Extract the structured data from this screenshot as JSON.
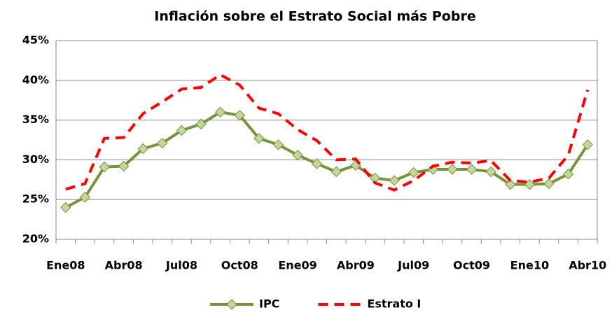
{
  "chart_data": {
    "type": "line",
    "title": "Inflación sobre el  Estrato Social más Pobre",
    "categories": [
      "Ene08",
      null,
      null,
      "Abr08",
      null,
      null,
      "Jul08",
      null,
      null,
      "Oct08",
      null,
      null,
      "Ene09",
      null,
      null,
      "Abr09",
      null,
      null,
      "Jul09",
      null,
      null,
      "Oct09",
      null,
      null,
      "Ene10",
      null,
      null,
      "Abr10"
    ],
    "series": [
      {
        "name": "IPC",
        "color": "#77933c",
        "marker_fill": "#c3d69b",
        "dashed": false,
        "values": [
          24.0,
          25.3,
          29.1,
          29.2,
          31.4,
          32.1,
          33.7,
          34.5,
          36.0,
          35.6,
          32.7,
          31.9,
          30.6,
          29.5,
          28.5,
          29.3,
          27.7,
          27.4,
          28.4,
          28.8,
          28.8,
          28.8,
          28.5,
          26.9,
          26.9,
          27.0,
          28.2,
          31.9
        ]
      },
      {
        "name": "Estrato I",
        "color": "#ff0000",
        "dashed": true,
        "values": [
          26.3,
          27.0,
          32.7,
          32.8,
          35.8,
          37.3,
          38.9,
          39.1,
          40.7,
          39.4,
          36.5,
          35.8,
          33.8,
          32.4,
          30.0,
          30.1,
          27.1,
          26.2,
          27.4,
          29.2,
          29.7,
          29.6,
          29.9,
          27.4,
          27.2,
          27.7,
          30.6,
          38.8
        ]
      }
    ],
    "ylim": [
      20,
      45
    ],
    "yticks": [
      {
        "value": 20,
        "label": "20%"
      },
      {
        "value": 25,
        "label": "25%"
      },
      {
        "value": 30,
        "label": "30%"
      },
      {
        "value": 35,
        "label": "35%"
      },
      {
        "value": 40,
        "label": "40%"
      },
      {
        "value": 45,
        "label": "45%"
      }
    ],
    "grid": true,
    "legend": "bottom"
  }
}
